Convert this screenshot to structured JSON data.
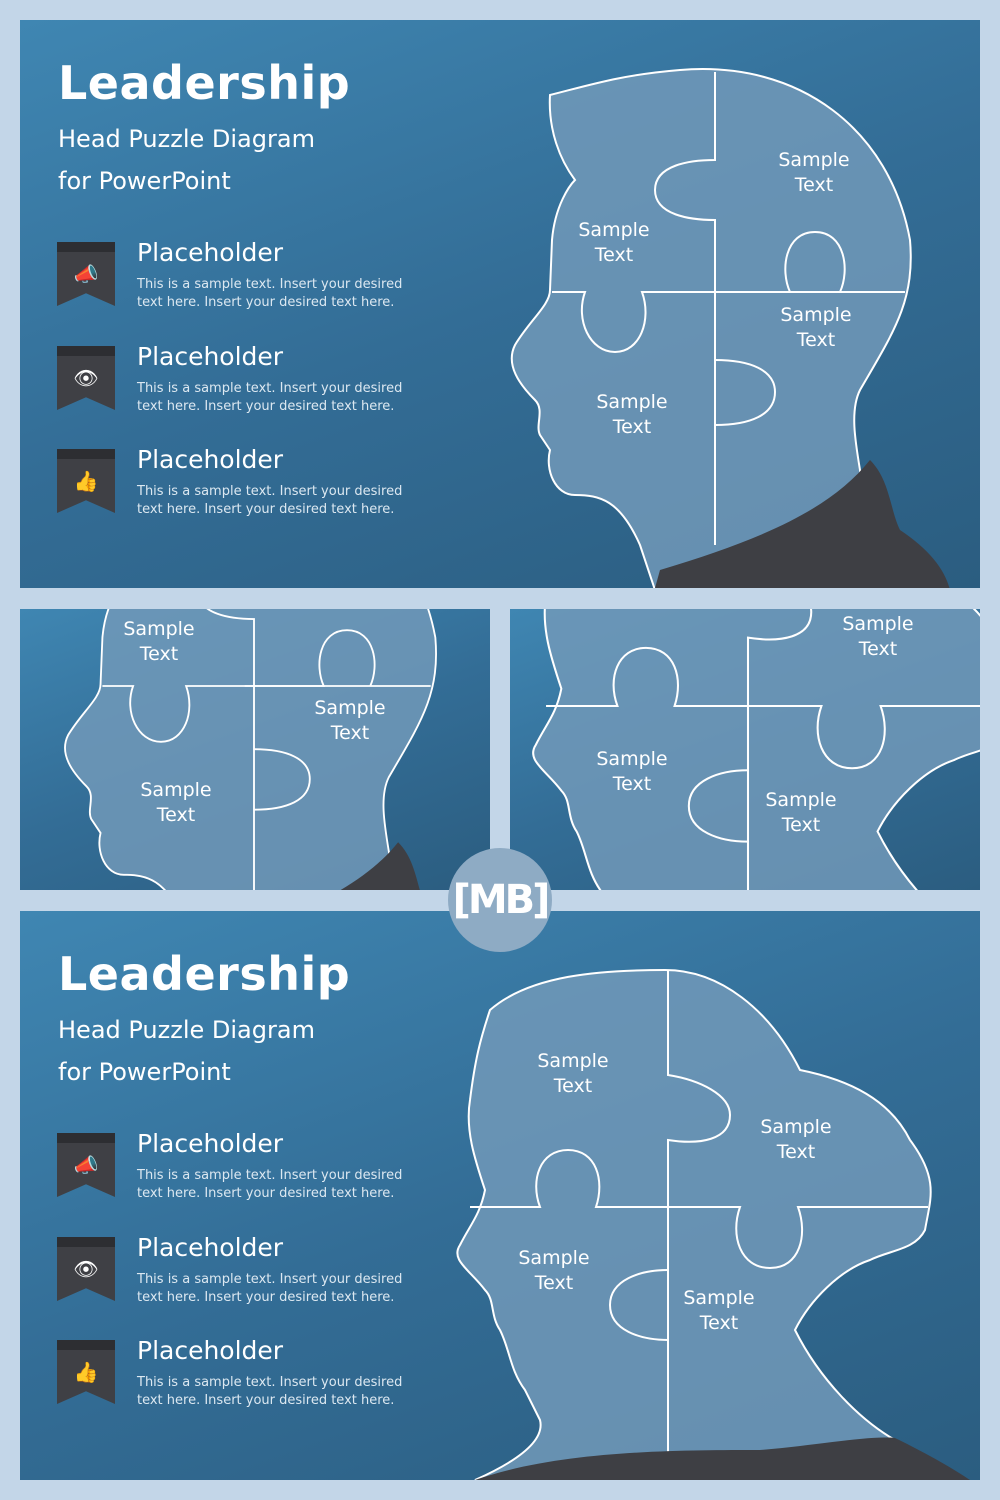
{
  "slides": [
    {
      "title": "Leadership",
      "subtitle_lines": [
        "Head Puzzle Diagram",
        "for PowerPoint"
      ],
      "items": [
        {
          "icon": "megaphone-icon",
          "heading": "Placeholder",
          "text": "This is a sample text. Insert your desired text here. Insert your desired text here."
        },
        {
          "icon": "eye-icon",
          "heading": "Placeholder",
          "text": "This is a sample text. Insert your desired text here. Insert your desired text here."
        },
        {
          "icon": "thumbs-up-icon",
          "heading": "Placeholder",
          "text": "This is a sample text. Insert your desired text here. Insert your desired text here."
        }
      ]
    },
    {
      "title": "Leadership",
      "subtitle_lines": [
        "Head Puzzle Diagram",
        "for PowerPoint"
      ],
      "items": [
        {
          "icon": "megaphone-icon",
          "heading": "Placeholder",
          "text": "This is a sample text. Insert your desired text here. Insert your desired text here."
        },
        {
          "icon": "eye-icon",
          "heading": "Placeholder",
          "text": "This is a sample text. Insert your desired text here. Insert your desired text here."
        },
        {
          "icon": "thumbs-up-icon",
          "heading": "Placeholder",
          "text": "This is a sample text. Insert your desired text here. Insert your desired text here."
        }
      ]
    }
  ],
  "puzzle_label": "Sample Text",
  "logo": "[MB]",
  "colors": {
    "background": "#c3d6e8",
    "slide": "#336d96",
    "puzzle": "#7ba2bf",
    "badge": "#3f4045",
    "logo": "#8eabc4"
  }
}
